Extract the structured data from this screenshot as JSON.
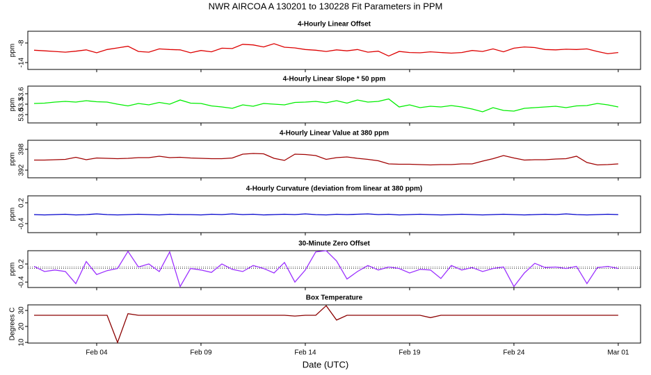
{
  "title": "NWR   AIRCOA A   130201 to 130228   Fit Parameters in PPM",
  "xlabel": "Date (UTC)",
  "xlim": [
    0.7,
    30.07
  ],
  "xticks": [
    {
      "value": 4,
      "label": "Feb 04"
    },
    {
      "value": 9,
      "label": "Feb 09"
    },
    {
      "value": 14,
      "label": "Feb 14"
    },
    {
      "value": 19,
      "label": "Feb 19"
    },
    {
      "value": 24,
      "label": "Feb 24"
    },
    {
      "value": 29,
      "label": "Mar 01"
    }
  ],
  "chart_data": [
    {
      "type": "line",
      "title": "4-Hourly Linear Offset",
      "ylabel": "ppm",
      "ylim": [
        -16.1,
        -4.4
      ],
      "yticks": [
        -14,
        -8
      ],
      "x": [
        1,
        1.5,
        2,
        2.5,
        3,
        3.5,
        4,
        4.5,
        5,
        5.5,
        6,
        6.5,
        7,
        7.5,
        8,
        8.5,
        9,
        9.5,
        10,
        10.5,
        11,
        11.5,
        12,
        12.5,
        13,
        13.5,
        14,
        14.5,
        15,
        15.5,
        16,
        16.5,
        17,
        17.5,
        18,
        18.5,
        19,
        19.5,
        20,
        20.5,
        21,
        21.5,
        22,
        22.5,
        23,
        23.5,
        24,
        24.5,
        25,
        25.5,
        26,
        26.5,
        27,
        27.5,
        28,
        28.5,
        29
      ],
      "series": [
        {
          "color": "#dd0000",
          "values": [
            -10.2,
            -10.4,
            -10.6,
            -10.8,
            -10.5,
            -10.1,
            -11.0,
            -10.0,
            -9.5,
            -9.0,
            -10.6,
            -10.8,
            -9.8,
            -10.0,
            -10.1,
            -11.0,
            -10.3,
            -10.7,
            -9.6,
            -9.7,
            -8.4,
            -8.6,
            -9.2,
            -8.2,
            -9.3,
            -9.5,
            -10.0,
            -10.2,
            -10.6,
            -10.1,
            -10.4,
            -10.0,
            -10.8,
            -10.5,
            -12.0,
            -10.6,
            -10.9,
            -11.0,
            -10.7,
            -10.9,
            -11.1,
            -10.9,
            -10.3,
            -10.6,
            -9.8,
            -10.7,
            -9.6,
            -9.2,
            -9.4,
            -10.0,
            -10.1,
            -9.9,
            -10.0,
            -9.8,
            -10.6,
            -11.3,
            -10.9
          ]
        }
      ]
    },
    {
      "type": "line",
      "title": "4-Hourly Linear Slope * 50 ppm",
      "ylabel": "ppm",
      "ylim": [
        52.76,
        53.82
      ],
      "yticks": [
        {
          "value": 53.0,
          "label": "53.0"
        },
        {
          "value": 53.3,
          "label": "53.3"
        },
        53.6
      ],
      "x": [
        1,
        1.5,
        2,
        2.5,
        3,
        3.5,
        4,
        4.5,
        5,
        5.5,
        6,
        6.5,
        7,
        7.5,
        8,
        8.5,
        9,
        9.5,
        10,
        10.5,
        11,
        11.5,
        12,
        12.5,
        13,
        13.5,
        14,
        14.5,
        15,
        15.5,
        16,
        16.5,
        17,
        17.5,
        18,
        18.5,
        19,
        19.5,
        20,
        20.5,
        21,
        21.5,
        22,
        22.5,
        23,
        23.5,
        24,
        24.5,
        25,
        25.5,
        26,
        26.5,
        27,
        27.5,
        28,
        28.5,
        29
      ],
      "series": [
        {
          "color": "#00ee00",
          "values": [
            53.32,
            53.33,
            53.36,
            53.38,
            53.36,
            53.4,
            53.37,
            53.36,
            53.3,
            53.25,
            53.32,
            53.28,
            53.35,
            53.3,
            53.42,
            53.33,
            53.32,
            53.25,
            53.22,
            53.18,
            53.28,
            53.24,
            53.32,
            53.3,
            53.28,
            53.35,
            53.36,
            53.38,
            53.34,
            53.4,
            53.33,
            53.42,
            53.36,
            53.38,
            53.45,
            53.22,
            53.28,
            53.2,
            53.24,
            53.22,
            53.26,
            53.22,
            53.16,
            53.08,
            53.2,
            53.12,
            53.1,
            53.18,
            53.2,
            53.22,
            53.24,
            53.2,
            53.25,
            53.26,
            53.32,
            53.28,
            53.22
          ]
        }
      ]
    },
    {
      "type": "line",
      "title": "4-Hourly Linear Value at 380 ppm",
      "ylabel": "ppm",
      "ylim": [
        389.8,
        400.6
      ],
      "yticks": [
        392,
        398
      ],
      "x": [
        1,
        1.5,
        2,
        2.5,
        3,
        3.5,
        4,
        4.5,
        5,
        5.5,
        6,
        6.5,
        7,
        7.5,
        8,
        8.5,
        9,
        9.5,
        10,
        10.5,
        11,
        11.5,
        12,
        12.5,
        13,
        13.5,
        14,
        14.5,
        15,
        15.5,
        16,
        16.5,
        17,
        17.5,
        18,
        18.5,
        19,
        19.5,
        20,
        20.5,
        21,
        21.5,
        22,
        22.5,
        23,
        23.5,
        24,
        24.5,
        25,
        25.5,
        26,
        26.5,
        27,
        27.5,
        28,
        28.5,
        29
      ],
      "series": [
        {
          "color": "#a00000",
          "values": [
            394.9,
            394.9,
            395.0,
            395.1,
            395.7,
            395.0,
            395.5,
            395.4,
            395.3,
            395.4,
            395.6,
            395.6,
            396.0,
            395.6,
            395.7,
            395.5,
            395.4,
            395.3,
            395.3,
            395.5,
            396.6,
            396.8,
            396.7,
            395.4,
            394.8,
            396.6,
            396.5,
            396.2,
            395.1,
            395.6,
            395.8,
            395.4,
            395.1,
            394.7,
            393.8,
            393.7,
            393.7,
            393.6,
            393.5,
            393.6,
            393.6,
            393.8,
            393.8,
            394.6,
            395.3,
            396.2,
            395.5,
            394.9,
            395.0,
            395.0,
            395.2,
            395.3,
            396.0,
            394.2,
            393.5,
            393.6,
            393.8
          ]
        }
      ]
    },
    {
      "type": "line",
      "title": "4-Hourly Curvature (deviation from linear at 380 ppm)",
      "ylabel": "ppm",
      "ylim": [
        -0.66,
        0.4
      ],
      "yticks": [
        -0.4,
        0.2
      ],
      "x": [
        1,
        1.5,
        2,
        2.5,
        3,
        3.5,
        4,
        4.5,
        5,
        5.5,
        6,
        6.5,
        7,
        7.5,
        8,
        8.5,
        9,
        9.5,
        10,
        10.5,
        11,
        11.5,
        12,
        12.5,
        13,
        13.5,
        14,
        14.5,
        15,
        15.5,
        16,
        16.5,
        17,
        17.5,
        18,
        18.5,
        19,
        19.5,
        20,
        20.5,
        21,
        21.5,
        22,
        22.5,
        23,
        23.5,
        24,
        24.5,
        25,
        25.5,
        26,
        26.5,
        27,
        27.5,
        28,
        28.5,
        29
      ],
      "series": [
        {
          "color": "#0000cc",
          "values": [
            -0.14,
            -0.15,
            -0.14,
            -0.13,
            -0.15,
            -0.14,
            -0.12,
            -0.14,
            -0.15,
            -0.14,
            -0.13,
            -0.14,
            -0.15,
            -0.13,
            -0.14,
            -0.14,
            -0.15,
            -0.13,
            -0.14,
            -0.12,
            -0.14,
            -0.13,
            -0.15,
            -0.14,
            -0.13,
            -0.14,
            -0.12,
            -0.14,
            -0.15,
            -0.13,
            -0.14,
            -0.13,
            -0.12,
            -0.14,
            -0.13,
            -0.15,
            -0.14,
            -0.13,
            -0.14,
            -0.15,
            -0.14,
            -0.13,
            -0.14,
            -0.15,
            -0.14,
            -0.13,
            -0.14,
            -0.15,
            -0.14,
            -0.13,
            -0.14,
            -0.12,
            -0.14,
            -0.15,
            -0.14,
            -0.13,
            -0.14
          ]
        }
      ]
    },
    {
      "type": "line",
      "title": "30-Minute Zero Offset",
      "ylabel": "ppm",
      "ylim": [
        -0.58,
        0.64
      ],
      "yticks": [
        -0.4,
        0.2
      ],
      "reference_lines": [
        0.1,
        0.05
      ],
      "x": [
        1,
        1.5,
        2,
        2.5,
        3,
        3.5,
        4,
        4.5,
        5,
        5.5,
        6,
        6.5,
        7,
        7.5,
        8,
        8.5,
        9,
        9.5,
        10,
        10.5,
        11,
        11.5,
        12,
        12.5,
        13,
        13.5,
        14,
        14.5,
        15,
        15.5,
        16,
        16.5,
        17,
        17.5,
        18,
        18.5,
        19,
        19.5,
        20,
        20.5,
        21,
        21.5,
        22,
        22.5,
        23,
        23.5,
        24,
        24.5,
        25,
        25.5,
        26,
        26.5,
        27,
        27.5,
        28,
        28.5,
        29
      ],
      "series": [
        {
          "color": "#9b30ff",
          "values": [
            0.12,
            -0.05,
            0.0,
            -0.05,
            -0.45,
            0.28,
            -0.15,
            -0.02,
            0.05,
            0.62,
            0.1,
            0.2,
            -0.05,
            0.6,
            -0.55,
            0.05,
            0.0,
            -0.08,
            0.2,
            0.02,
            -0.05,
            0.15,
            0.05,
            -0.1,
            0.25,
            -0.4,
            0.0,
            0.6,
            0.64,
            0.3,
            -0.3,
            -0.05,
            0.15,
            0.0,
            0.1,
            0.05,
            -0.1,
            0.02,
            0.0,
            -0.28,
            0.15,
            0.0,
            0.08,
            -0.05,
            0.05,
            0.1,
            -0.55,
            -0.1,
            0.22,
            0.08,
            0.1,
            0.05,
            0.12,
            -0.45,
            0.08,
            0.12,
            0.05
          ]
        }
      ]
    },
    {
      "type": "line",
      "title": "Box Temperature",
      "ylabel": "Degrees C",
      "ylim": [
        9.6,
        33.5
      ],
      "yticks": [
        10,
        20,
        30
      ],
      "x": [
        1,
        1.5,
        2,
        2.5,
        3,
        3.5,
        4,
        4.5,
        5,
        5.5,
        6,
        6.5,
        7,
        7.5,
        8,
        8.5,
        9,
        9.5,
        10,
        10.5,
        11,
        11.5,
        12,
        12.5,
        13,
        13.5,
        14,
        14.5,
        15,
        15.5,
        16,
        16.5,
        17,
        17.5,
        18,
        18.5,
        19,
        19.5,
        20,
        20.5,
        21,
        21.5,
        22,
        22.5,
        23,
        23.5,
        24,
        24.5,
        25,
        25.5,
        26,
        26.5,
        27,
        27.5,
        28,
        28.5,
        29
      ],
      "series": [
        {
          "color": "#8b0000",
          "values": [
            27,
            27,
            27,
            27,
            27,
            27,
            27,
            27,
            10,
            28,
            27,
            27,
            27,
            27,
            27,
            27,
            27,
            27,
            27,
            27,
            27,
            27,
            27,
            27,
            27,
            26.5,
            27,
            27,
            33,
            24,
            27,
            27,
            27,
            27,
            27,
            27,
            27,
            27,
            25.5,
            27,
            27,
            27,
            27,
            27,
            27,
            27,
            27,
            27,
            27,
            27,
            27,
            27,
            27,
            27,
            27,
            27,
            27
          ]
        }
      ]
    }
  ]
}
